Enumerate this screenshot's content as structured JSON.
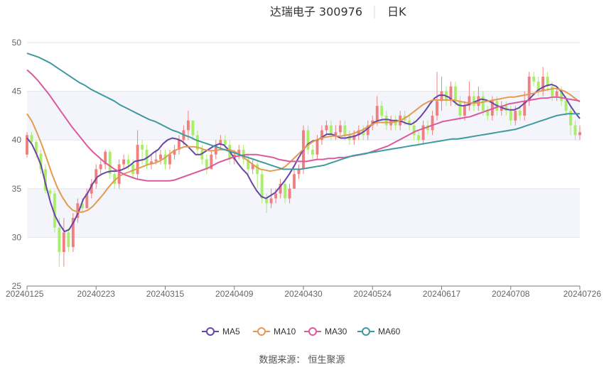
{
  "title": {
    "name": "达瑞电子 300976",
    "period": "日K"
  },
  "source_note": "数据来源： 恒生聚源",
  "colors": {
    "up": "#f08080",
    "down": "#a9ee6a",
    "band": "#f3f5fb",
    "grid": "#e6e6e6",
    "axis": "#7a7a7a",
    "MA5": "#6a45a6",
    "MA10": "#e39a52",
    "MA30": "#d85a9f",
    "MA60": "#3e9aa0"
  },
  "chart_data": {
    "type": "candlestick",
    "ylim": [
      25,
      50
    ],
    "yticks": [
      25,
      30,
      35,
      40,
      45,
      50
    ],
    "grid": "horizontal with alternating bands",
    "legend_position": "bottom-center",
    "xtick_labels": [
      "20240125",
      "20240223",
      "20240315",
      "20240409",
      "20240430",
      "20240524",
      "20240617",
      "20240708",
      "20240726"
    ],
    "candles": [
      [
        38.5,
        40.5,
        38.2,
        40.8
      ],
      [
        40.5,
        39.8,
        39.5,
        40.8
      ],
      [
        39.8,
        38.6,
        38.2,
        40.0
      ],
      [
        38.6,
        37.0,
        36.5,
        39.0
      ],
      [
        37.0,
        34.8,
        34.5,
        37.5
      ],
      [
        34.8,
        34.5,
        34.0,
        35.0
      ],
      [
        34.5,
        31.0,
        30.5,
        34.8
      ],
      [
        31.0,
        28.5,
        27.0,
        32.0
      ],
      [
        28.5,
        30.5,
        27.0,
        32.0
      ],
      [
        30.5,
        29.0,
        28.5,
        31.0
      ],
      [
        29.0,
        32.0,
        28.5,
        32.5
      ],
      [
        32.0,
        33.5,
        31.5,
        34.0
      ],
      [
        33.5,
        33.0,
        32.5,
        34.0
      ],
      [
        33.0,
        34.5,
        33.0,
        35.0
      ],
      [
        34.5,
        35.5,
        34.0,
        36.0
      ],
      [
        35.5,
        37.0,
        35.0,
        37.5
      ],
      [
        37.0,
        37.5,
        36.5,
        38.0
      ],
      [
        37.5,
        38.8,
        37.0,
        39.0
      ],
      [
        38.8,
        36.5,
        36.0,
        39.0
      ],
      [
        36.5,
        35.5,
        35.0,
        37.0
      ],
      [
        35.5,
        37.5,
        35.0,
        38.0
      ],
      [
        37.5,
        38.0,
        37.0,
        38.5
      ],
      [
        38.0,
        37.5,
        37.0,
        38.5
      ],
      [
        37.5,
        36.5,
        36.0,
        38.0
      ],
      [
        36.5,
        39.5,
        36.0,
        41.0
      ],
      [
        39.5,
        39.0,
        37.5,
        40.0
      ],
      [
        39.0,
        37.5,
        37.0,
        39.5
      ],
      [
        37.5,
        37.8,
        37.0,
        38.5
      ],
      [
        37.8,
        38.0,
        37.5,
        39.0
      ],
      [
        38.0,
        38.5,
        37.5,
        39.0
      ],
      [
        38.5,
        37.5,
        37.0,
        39.0
      ],
      [
        37.5,
        38.5,
        37.0,
        39.0
      ],
      [
        38.5,
        39.0,
        38.0,
        39.5
      ],
      [
        39.0,
        40.0,
        38.5,
        40.5
      ],
      [
        40.0,
        41.0,
        39.5,
        41.5
      ],
      [
        41.0,
        42.0,
        40.0,
        43.0
      ],
      [
        42.0,
        40.5,
        40.0,
        42.0
      ],
      [
        40.5,
        39.0,
        38.5,
        41.0
      ],
      [
        39.0,
        38.0,
        37.5,
        39.5
      ],
      [
        38.0,
        37.0,
        36.5,
        38.5
      ],
      [
        37.0,
        38.5,
        37.0,
        39.0
      ],
      [
        38.5,
        39.5,
        38.0,
        40.0
      ],
      [
        39.5,
        40.0,
        39.0,
        40.5
      ],
      [
        40.0,
        39.5,
        39.0,
        40.5
      ],
      [
        39.5,
        38.0,
        37.5,
        40.0
      ],
      [
        38.0,
        38.5,
        37.5,
        39.0
      ],
      [
        38.5,
        39.0,
        38.0,
        39.5
      ],
      [
        39.0,
        38.0,
        37.5,
        39.5
      ],
      [
        38.0,
        37.0,
        36.5,
        38.5
      ],
      [
        37.0,
        37.5,
        36.5,
        38.0
      ],
      [
        37.5,
        36.5,
        35.0,
        38.0
      ],
      [
        36.5,
        34.0,
        33.5,
        37.0
      ],
      [
        34.0,
        33.5,
        32.5,
        34.5
      ],
      [
        33.5,
        34.0,
        33.0,
        35.0
      ],
      [
        34.0,
        34.5,
        33.5,
        35.0
      ],
      [
        34.5,
        35.5,
        34.0,
        36.0
      ],
      [
        35.5,
        34.0,
        33.5,
        36.0
      ],
      [
        34.0,
        35.0,
        33.5,
        35.5
      ],
      [
        35.0,
        36.5,
        35.0,
        37.0
      ],
      [
        36.5,
        37.0,
        36.0,
        37.5
      ],
      [
        37.0,
        41.0,
        36.5,
        41.5
      ],
      [
        41.0,
        39.0,
        38.5,
        41.5
      ],
      [
        39.0,
        38.5,
        38.0,
        39.5
      ],
      [
        38.5,
        40.0,
        38.0,
        40.5
      ],
      [
        40.0,
        41.0,
        39.5,
        41.5
      ],
      [
        41.0,
        41.5,
        40.5,
        42.0
      ],
      [
        41.5,
        40.5,
        40.0,
        42.0
      ],
      [
        40.5,
        40.8,
        40.0,
        41.5
      ],
      [
        40.8,
        41.5,
        40.5,
        42.0
      ],
      [
        41.5,
        40.5,
        40.0,
        42.0
      ],
      [
        40.5,
        40.0,
        39.5,
        41.0
      ],
      [
        40.0,
        40.5,
        39.5,
        41.0
      ],
      [
        40.5,
        41.0,
        40.0,
        41.5
      ],
      [
        41.0,
        40.5,
        40.0,
        41.5
      ],
      [
        40.5,
        41.5,
        40.0,
        42.0
      ],
      [
        41.5,
        42.0,
        41.0,
        42.5
      ],
      [
        42.0,
        43.5,
        41.5,
        44.5
      ],
      [
        43.5,
        42.5,
        42.0,
        44.0
      ],
      [
        42.5,
        41.5,
        41.0,
        43.0
      ],
      [
        41.5,
        42.0,
        41.0,
        42.5
      ],
      [
        42.0,
        41.5,
        41.0,
        42.5
      ],
      [
        41.5,
        42.5,
        41.0,
        43.0
      ],
      [
        42.5,
        42.0,
        41.5,
        43.0
      ],
      [
        42.0,
        41.5,
        41.0,
        42.5
      ],
      [
        41.5,
        40.5,
        40.0,
        42.0
      ],
      [
        40.5,
        40.0,
        39.5,
        41.0
      ],
      [
        40.0,
        41.5,
        39.5,
        42.0
      ],
      [
        41.5,
        41.0,
        40.5,
        42.0
      ],
      [
        41.0,
        42.5,
        40.5,
        43.0
      ],
      [
        42.5,
        44.0,
        42.0,
        47.0
      ],
      [
        44.0,
        45.0,
        43.0,
        46.5
      ],
      [
        45.0,
        44.0,
        43.5,
        45.5
      ],
      [
        44.0,
        45.5,
        43.5,
        46.0
      ],
      [
        45.5,
        44.0,
        43.5,
        46.0
      ],
      [
        44.0,
        42.5,
        42.0,
        44.5
      ],
      [
        42.5,
        43.5,
        42.0,
        44.0
      ],
      [
        43.5,
        44.5,
        43.0,
        46.0
      ],
      [
        44.5,
        43.5,
        43.0,
        45.0
      ],
      [
        43.5,
        44.5,
        43.0,
        45.5
      ],
      [
        44.5,
        43.0,
        42.5,
        45.0
      ],
      [
        43.0,
        42.5,
        42.0,
        43.5
      ],
      [
        42.5,
        44.0,
        42.0,
        44.5
      ],
      [
        44.0,
        43.0,
        42.5,
        44.5
      ],
      [
        43.0,
        43.5,
        42.5,
        44.0
      ],
      [
        43.5,
        43.0,
        42.5,
        44.0
      ],
      [
        43.0,
        42.0,
        41.5,
        43.5
      ],
      [
        42.0,
        43.0,
        41.5,
        43.5
      ],
      [
        43.0,
        42.5,
        42.0,
        43.5
      ],
      [
        42.5,
        44.0,
        42.0,
        45.0
      ],
      [
        44.0,
        46.5,
        43.5,
        47.0
      ],
      [
        46.5,
        46.0,
        45.5,
        47.0
      ],
      [
        46.0,
        45.0,
        44.5,
        46.5
      ],
      [
        45.0,
        46.5,
        44.5,
        47.5
      ],
      [
        46.5,
        45.5,
        45.0,
        47.0
      ],
      [
        45.5,
        44.5,
        44.0,
        46.0
      ],
      [
        44.5,
        45.0,
        44.0,
        45.5
      ],
      [
        45.0,
        44.0,
        43.5,
        45.5
      ],
      [
        44.0,
        43.0,
        42.5,
        44.5
      ],
      [
        43.0,
        41.5,
        40.5,
        43.5
      ],
      [
        41.5,
        40.5,
        40.0,
        42.0
      ],
      [
        40.5,
        40.8,
        40.0,
        41.5
      ]
    ],
    "series": [
      {
        "name": "MA5",
        "values": [
          40.2,
          39.6,
          38.6,
          37.4,
          35.4,
          33.6,
          32.2,
          31.3,
          30.6,
          30.8,
          31.6,
          32.6,
          33.9,
          34.6,
          35.5,
          36.2,
          36.5,
          36.7,
          36.8,
          36.8,
          36.9,
          37.1,
          37.4,
          37.8,
          37.9,
          38.0,
          38.3,
          38.7,
          39.0,
          39.6,
          40.0,
          40.2,
          40.1,
          39.9,
          39.5,
          39.0,
          38.5,
          38.5,
          38.8,
          39.1,
          39.4,
          39.6,
          39.5,
          39.0,
          38.3,
          37.6,
          37.0,
          36.5,
          35.6,
          34.8,
          34.2,
          34.0,
          34.3,
          34.6,
          35.2,
          35.8,
          36.5,
          37.3,
          38.2,
          39.0,
          39.6,
          39.9,
          40.0,
          40.3,
          40.6,
          40.6,
          40.4,
          40.2,
          40.2,
          40.3,
          40.4,
          40.6,
          40.9,
          41.3,
          41.8,
          42.0,
          42.1,
          42.1,
          42.0,
          42.0,
          41.9,
          41.7,
          41.6,
          41.9,
          42.4,
          43.0,
          43.7,
          44.3,
          44.6,
          44.6,
          44.4,
          44.0,
          43.6,
          43.5,
          43.6,
          43.8,
          44.0,
          44.2,
          44.1,
          43.9,
          43.6,
          43.4,
          43.2,
          43.1,
          43.1,
          43.3,
          43.7,
          44.1,
          44.6,
          45.1,
          45.4,
          45.6,
          45.7,
          45.5,
          45.0,
          44.3,
          43.5,
          42.8,
          42.2
        ]
      },
      {
        "name": "MA10",
        "values": [
          42.7,
          41.9,
          40.7,
          39.4,
          37.9,
          36.4,
          35.1,
          34.1,
          33.3,
          32.8,
          32.6,
          32.6,
          32.8,
          33.2,
          33.8,
          34.4,
          35.1,
          35.7,
          36.2,
          36.5,
          36.7,
          36.9,
          37.1,
          37.3,
          37.5,
          37.6,
          37.8,
          38.1,
          38.5,
          38.9,
          39.1,
          39.3,
          39.3,
          39.3,
          39.2,
          39.0,
          38.9,
          38.9,
          39.0,
          39.0,
          39.0,
          38.8,
          38.5,
          38.1,
          37.7,
          37.3,
          37.0,
          36.9,
          36.8,
          36.9,
          37.0,
          37.3,
          37.8,
          38.3,
          38.8,
          39.3,
          39.7,
          40.0,
          40.2,
          40.3,
          40.4,
          40.4,
          40.4,
          40.5,
          40.6,
          40.8,
          41.0,
          41.3,
          41.6,
          41.8,
          41.8,
          41.8,
          41.8,
          41.9,
          42.1,
          42.4,
          42.8,
          43.2,
          43.6,
          43.9,
          44.1,
          44.1,
          44.1,
          44.1,
          44.1,
          44.0,
          43.9,
          43.8,
          43.8,
          43.8,
          43.9,
          44.0,
          44.1,
          44.2,
          44.3,
          44.4,
          44.4,
          44.5,
          44.6,
          44.7,
          44.8,
          45.0,
          45.1,
          45.2,
          45.3,
          45.2,
          45.0,
          44.7,
          44.3,
          43.9
        ]
      },
      {
        "name": "MA30",
        "values": [
          47.2,
          46.7,
          46.1,
          45.4,
          44.7,
          43.9,
          43.1,
          42.3,
          41.5,
          40.8,
          40.1,
          39.4,
          38.8,
          38.3,
          37.8,
          37.4,
          37.0,
          36.7,
          36.4,
          36.2,
          36.0,
          35.9,
          35.8,
          35.8,
          35.8,
          35.8,
          35.8,
          35.9,
          36.1,
          36.3,
          36.5,
          36.7,
          36.9,
          37.1,
          37.4,
          37.7,
          37.9,
          38.1,
          38.3,
          38.4,
          38.5,
          38.5,
          38.5,
          38.4,
          38.3,
          38.2,
          38.0,
          37.9,
          37.8,
          37.8,
          37.8,
          37.8,
          37.9,
          38.0,
          38.0,
          38.1,
          38.1,
          38.2,
          38.2,
          38.3,
          38.4,
          38.5,
          38.6,
          38.8,
          39.0,
          39.2,
          39.4,
          39.7,
          40.0,
          40.3,
          40.6,
          40.9,
          41.1,
          41.3,
          41.5,
          41.7,
          41.9,
          42.0,
          42.1,
          42.2,
          42.3,
          42.4,
          42.6,
          42.8,
          43.0,
          43.2,
          43.4,
          43.5,
          43.7,
          43.8,
          43.9,
          44.0,
          44.1,
          44.2,
          44.3,
          44.3,
          44.4,
          44.4,
          44.3,
          44.2,
          44.1,
          44.0
        ]
      },
      {
        "name": "MA60",
        "values": [
          48.9,
          48.7,
          48.5,
          48.2,
          47.9,
          47.5,
          47.1,
          46.7,
          46.3,
          45.9,
          45.6,
          45.2,
          44.9,
          44.6,
          44.3,
          44.0,
          43.6,
          43.3,
          43.0,
          42.7,
          42.4,
          42.1,
          41.9,
          41.6,
          41.3,
          41.0,
          40.8,
          40.5,
          40.3,
          40.0,
          39.8,
          39.6,
          39.4,
          39.2,
          39.0,
          38.8,
          38.6,
          38.4,
          38.2,
          38.0,
          37.8,
          37.6,
          37.4,
          37.2,
          37.0,
          37.0,
          37.0,
          37.0,
          37.1,
          37.2,
          37.3,
          37.4,
          37.6,
          37.8,
          38.0,
          38.2,
          38.4,
          38.5,
          38.6,
          38.7,
          38.8,
          38.9,
          39.0,
          39.1,
          39.2,
          39.3,
          39.4,
          39.5,
          39.6,
          39.7,
          39.8,
          39.9,
          40.0,
          40.1,
          40.1,
          40.2,
          40.3,
          40.4,
          40.5,
          40.6,
          40.7,
          40.8,
          40.9,
          41.0,
          41.1,
          41.3,
          41.5,
          41.7,
          41.9,
          42.1,
          42.3,
          42.5,
          42.6,
          42.7,
          42.7,
          42.7
        ]
      }
    ]
  }
}
